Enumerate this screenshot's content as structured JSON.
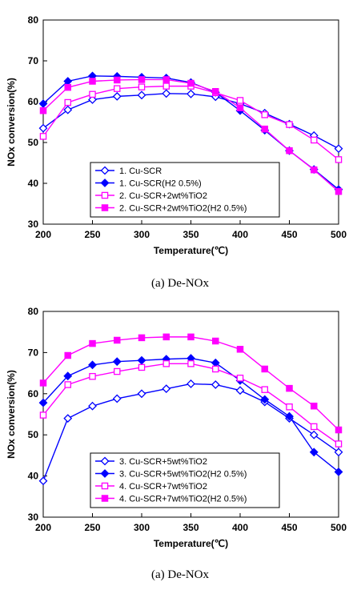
{
  "chart_data": [
    {
      "type": "line",
      "caption": "(a)  De-NOx",
      "xlabel": "Temperature(℃)",
      "ylabel": "NOx conversion(%)",
      "xlim": [
        200,
        500
      ],
      "ylim": [
        30,
        80
      ],
      "xticks": [
        "200",
        "250",
        "300",
        "350",
        "400",
        "450",
        "500"
      ],
      "yticks": [
        "30",
        "40",
        "50",
        "60",
        "70",
        "80"
      ],
      "legend_position": "bottom-left",
      "x": [
        200,
        225,
        250,
        275,
        300,
        325,
        350,
        375,
        400,
        425,
        450,
        475,
        500
      ],
      "series": [
        {
          "name": "1. Cu-SCR",
          "color": "#0000ff",
          "marker": "diamond-open",
          "values": [
            53.5,
            58,
            60.5,
            61.3,
            61.6,
            62,
            61.9,
            61.2,
            59.5,
            57.2,
            54.5,
            51.7,
            48.5
          ]
        },
        {
          "name": "1. Cu-SCR(H2 0.5%)",
          "color": "#0000ff",
          "marker": "diamond-filled",
          "values": [
            59.5,
            65,
            66.3,
            66.2,
            66,
            65.8,
            64.7,
            62.3,
            57.8,
            53,
            48,
            43.4,
            38.5
          ]
        },
        {
          "name": "2. Cu-SCR+2wt%TiO2",
          "color": "#ff00ff",
          "marker": "square-open",
          "values": [
            51.5,
            59.8,
            61.8,
            63.2,
            63.6,
            63.8,
            63.8,
            62.2,
            60.3,
            56.8,
            54.4,
            50.6,
            45.8
          ]
        },
        {
          "name": "2. Cu-SCR+2wt%TiO2(H2 0.5%)",
          "color": "#ff00ff",
          "marker": "square-filled",
          "values": [
            57.8,
            63.5,
            65,
            65.3,
            65.4,
            65.4,
            64.5,
            62.5,
            58.5,
            53.3,
            48,
            43.3,
            38
          ]
        }
      ]
    },
    {
      "type": "line",
      "caption": "(a)  De-NOx",
      "xlabel": "Temperature(℃)",
      "ylabel": "NOx conversion(%)",
      "xlim": [
        200,
        500
      ],
      "ylim": [
        30,
        80
      ],
      "xticks": [
        "200",
        "250",
        "300",
        "350",
        "400",
        "450",
        "500"
      ],
      "yticks": [
        "30",
        "40",
        "50",
        "60",
        "70",
        "80"
      ],
      "legend_position": "bottom-left",
      "x": [
        200,
        225,
        250,
        275,
        300,
        325,
        350,
        375,
        400,
        425,
        450,
        475,
        500
      ],
      "series": [
        {
          "name": "3. Cu-SCR+5wt%TiO2",
          "color": "#0000ff",
          "marker": "diamond-open",
          "values": [
            38.8,
            54,
            57,
            58.8,
            60,
            61.2,
            62.4,
            62.2,
            60.8,
            58,
            54,
            50,
            45.8
          ]
        },
        {
          "name": "3. Cu-SCR+5wt%TiO2(H2 0.5%)",
          "color": "#0000ff",
          "marker": "diamond-filled",
          "values": [
            57.8,
            64.3,
            67,
            67.8,
            68.1,
            68.4,
            68.6,
            67.5,
            63.2,
            58.6,
            54.5,
            45.8,
            41
          ]
        },
        {
          "name": "4. Cu-SCR+7wt%TiO2",
          "color": "#ff00ff",
          "marker": "square-open",
          "values": [
            54.8,
            62.2,
            64.2,
            65.4,
            66.4,
            67.3,
            67.3,
            66,
            63.8,
            61,
            56.8,
            52,
            47.8
          ]
        },
        {
          "name": "4. Cu-SCR+7wt%TiO2(H2 0.5%)",
          "color": "#ff00ff",
          "marker": "square-filled",
          "values": [
            62.6,
            69.3,
            72.2,
            73,
            73.6,
            73.8,
            73.8,
            72.8,
            70.8,
            66,
            61.3,
            57,
            51.2
          ]
        }
      ]
    }
  ]
}
